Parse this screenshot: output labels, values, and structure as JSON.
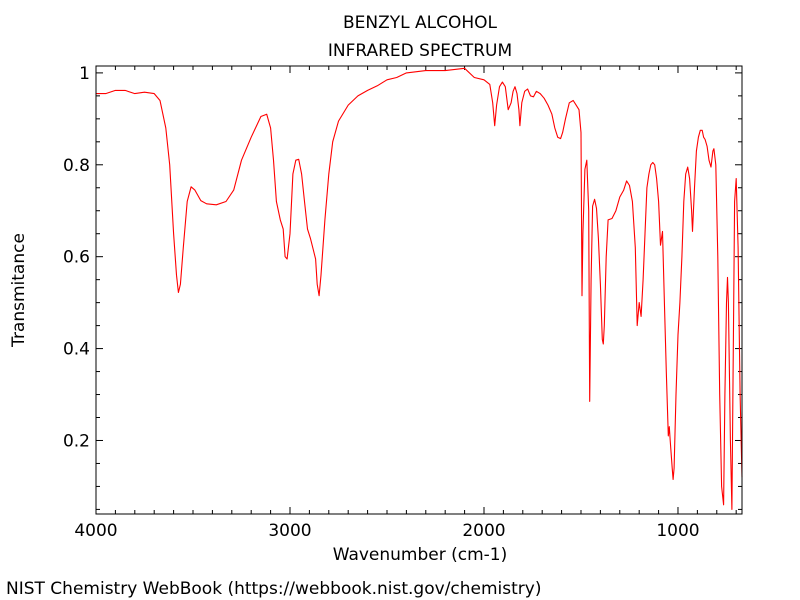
{
  "chart_data": {
    "type": "line",
    "title": "BENZYL ALCOHOL",
    "subtitle": "INFRARED SPECTRUM",
    "xlabel": "Wavenumber (cm-1)",
    "ylabel": "Transmitance",
    "xlim": [
      4000,
      670
    ],
    "ylim": [
      0.04,
      1.015
    ],
    "x_ticks": [
      {
        "value": 4000,
        "label": "4000"
      },
      {
        "value": 3000,
        "label": "3000"
      },
      {
        "value": 2000,
        "label": "2000"
      },
      {
        "value": 1000,
        "label": "1000"
      }
    ],
    "y_ticks": [
      {
        "value": 0.2,
        "label": "0.2"
      },
      {
        "value": 0.4,
        "label": "0.4"
      },
      {
        "value": 0.6,
        "label": "0.6"
      },
      {
        "value": 0.8,
        "label": "0.8"
      },
      {
        "value": 1.0,
        "label": "1"
      }
    ],
    "grid": false,
    "series": [
      {
        "name": "Benzyl alcohol IR spectrum",
        "color": "#ff0000",
        "points": [
          [
            4000,
            0.955
          ],
          [
            3950,
            0.955
          ],
          [
            3900,
            0.962
          ],
          [
            3850,
            0.962
          ],
          [
            3800,
            0.955
          ],
          [
            3750,
            0.958
          ],
          [
            3700,
            0.955
          ],
          [
            3670,
            0.94
          ],
          [
            3640,
            0.88
          ],
          [
            3620,
            0.8
          ],
          [
            3600,
            0.65
          ],
          [
            3585,
            0.56
          ],
          [
            3575,
            0.522
          ],
          [
            3565,
            0.54
          ],
          [
            3550,
            0.62
          ],
          [
            3530,
            0.72
          ],
          [
            3510,
            0.752
          ],
          [
            3490,
            0.745
          ],
          [
            3460,
            0.722
          ],
          [
            3430,
            0.715
          ],
          [
            3380,
            0.713
          ],
          [
            3330,
            0.72
          ],
          [
            3290,
            0.745
          ],
          [
            3250,
            0.81
          ],
          [
            3200,
            0.86
          ],
          [
            3150,
            0.905
          ],
          [
            3120,
            0.91
          ],
          [
            3100,
            0.88
          ],
          [
            3085,
            0.81
          ],
          [
            3070,
            0.72
          ],
          [
            3050,
            0.68
          ],
          [
            3035,
            0.66
          ],
          [
            3025,
            0.6
          ],
          [
            3015,
            0.595
          ],
          [
            3000,
            0.65
          ],
          [
            2985,
            0.78
          ],
          [
            2970,
            0.81
          ],
          [
            2955,
            0.812
          ],
          [
            2940,
            0.78
          ],
          [
            2925,
            0.72
          ],
          [
            2910,
            0.66
          ],
          [
            2895,
            0.64
          ],
          [
            2880,
            0.615
          ],
          [
            2868,
            0.595
          ],
          [
            2860,
            0.54
          ],
          [
            2850,
            0.515
          ],
          [
            2840,
            0.56
          ],
          [
            2820,
            0.68
          ],
          [
            2800,
            0.78
          ],
          [
            2780,
            0.85
          ],
          [
            2750,
            0.895
          ],
          [
            2700,
            0.93
          ],
          [
            2650,
            0.95
          ],
          [
            2600,
            0.962
          ],
          [
            2550,
            0.972
          ],
          [
            2500,
            0.985
          ],
          [
            2450,
            0.99
          ],
          [
            2400,
            1.0
          ],
          [
            2300,
            1.005
          ],
          [
            2200,
            1.005
          ],
          [
            2100,
            1.01
          ],
          [
            2050,
            0.99
          ],
          [
            2000,
            0.985
          ],
          [
            1970,
            0.975
          ],
          [
            1955,
            0.935
          ],
          [
            1945,
            0.885
          ],
          [
            1935,
            0.93
          ],
          [
            1920,
            0.97
          ],
          [
            1905,
            0.98
          ],
          [
            1890,
            0.97
          ],
          [
            1875,
            0.92
          ],
          [
            1860,
            0.935
          ],
          [
            1850,
            0.96
          ],
          [
            1840,
            0.97
          ],
          [
            1830,
            0.955
          ],
          [
            1820,
            0.92
          ],
          [
            1815,
            0.885
          ],
          [
            1805,
            0.935
          ],
          [
            1790,
            0.96
          ],
          [
            1775,
            0.965
          ],
          [
            1760,
            0.95
          ],
          [
            1745,
            0.948
          ],
          [
            1730,
            0.96
          ],
          [
            1710,
            0.955
          ],
          [
            1690,
            0.945
          ],
          [
            1670,
            0.93
          ],
          [
            1650,
            0.91
          ],
          [
            1635,
            0.88
          ],
          [
            1620,
            0.86
          ],
          [
            1605,
            0.857
          ],
          [
            1595,
            0.87
          ],
          [
            1580,
            0.9
          ],
          [
            1560,
            0.935
          ],
          [
            1540,
            0.94
          ],
          [
            1525,
            0.93
          ],
          [
            1510,
            0.92
          ],
          [
            1500,
            0.87
          ],
          [
            1495,
            0.515
          ],
          [
            1490,
            0.65
          ],
          [
            1480,
            0.79
          ],
          [
            1470,
            0.81
          ],
          [
            1460,
            0.7
          ],
          [
            1455,
            0.285
          ],
          [
            1448,
            0.55
          ],
          [
            1440,
            0.71
          ],
          [
            1430,
            0.725
          ],
          [
            1420,
            0.705
          ],
          [
            1410,
            0.64
          ],
          [
            1400,
            0.54
          ],
          [
            1390,
            0.42
          ],
          [
            1385,
            0.41
          ],
          [
            1380,
            0.45
          ],
          [
            1370,
            0.6
          ],
          [
            1360,
            0.68
          ],
          [
            1340,
            0.683
          ],
          [
            1320,
            0.7
          ],
          [
            1300,
            0.73
          ],
          [
            1280,
            0.745
          ],
          [
            1265,
            0.765
          ],
          [
            1250,
            0.755
          ],
          [
            1235,
            0.72
          ],
          [
            1220,
            0.62
          ],
          [
            1210,
            0.45
          ],
          [
            1200,
            0.5
          ],
          [
            1190,
            0.47
          ],
          [
            1180,
            0.55
          ],
          [
            1170,
            0.65
          ],
          [
            1160,
            0.75
          ],
          [
            1150,
            0.78
          ],
          [
            1140,
            0.8
          ],
          [
            1130,
            0.805
          ],
          [
            1120,
            0.8
          ],
          [
            1110,
            0.77
          ],
          [
            1100,
            0.72
          ],
          [
            1090,
            0.625
          ],
          [
            1080,
            0.655
          ],
          [
            1070,
            0.5
          ],
          [
            1060,
            0.35
          ],
          [
            1050,
            0.21
          ],
          [
            1045,
            0.23
          ],
          [
            1040,
            0.2
          ],
          [
            1030,
            0.14
          ],
          [
            1025,
            0.115
          ],
          [
            1020,
            0.14
          ],
          [
            1010,
            0.3
          ],
          [
            1000,
            0.43
          ],
          [
            990,
            0.5
          ],
          [
            980,
            0.6
          ],
          [
            970,
            0.72
          ],
          [
            960,
            0.78
          ],
          [
            950,
            0.795
          ],
          [
            940,
            0.77
          ],
          [
            930,
            0.7
          ],
          [
            925,
            0.655
          ],
          [
            915,
            0.75
          ],
          [
            905,
            0.83
          ],
          [
            895,
            0.86
          ],
          [
            885,
            0.875
          ],
          [
            875,
            0.875
          ],
          [
            868,
            0.86
          ],
          [
            860,
            0.855
          ],
          [
            850,
            0.84
          ],
          [
            840,
            0.81
          ],
          [
            830,
            0.795
          ],
          [
            820,
            0.83
          ],
          [
            815,
            0.835
          ],
          [
            805,
            0.8
          ],
          [
            795,
            0.6
          ],
          [
            785,
            0.3
          ],
          [
            775,
            0.1
          ],
          [
            765,
            0.06
          ],
          [
            758,
            0.3
          ],
          [
            750,
            0.5
          ],
          [
            745,
            0.555
          ],
          [
            740,
            0.5
          ],
          [
            730,
            0.2
          ],
          [
            722,
            0.05
          ],
          [
            715,
            0.4
          ],
          [
            708,
            0.72
          ],
          [
            700,
            0.77
          ],
          [
            690,
            0.62
          ],
          [
            680,
            0.3
          ],
          [
            670,
            0.12
          ]
        ]
      }
    ]
  },
  "footer": {
    "credit": "NIST Chemistry WebBook (https://webbook.nist.gov/chemistry)"
  }
}
